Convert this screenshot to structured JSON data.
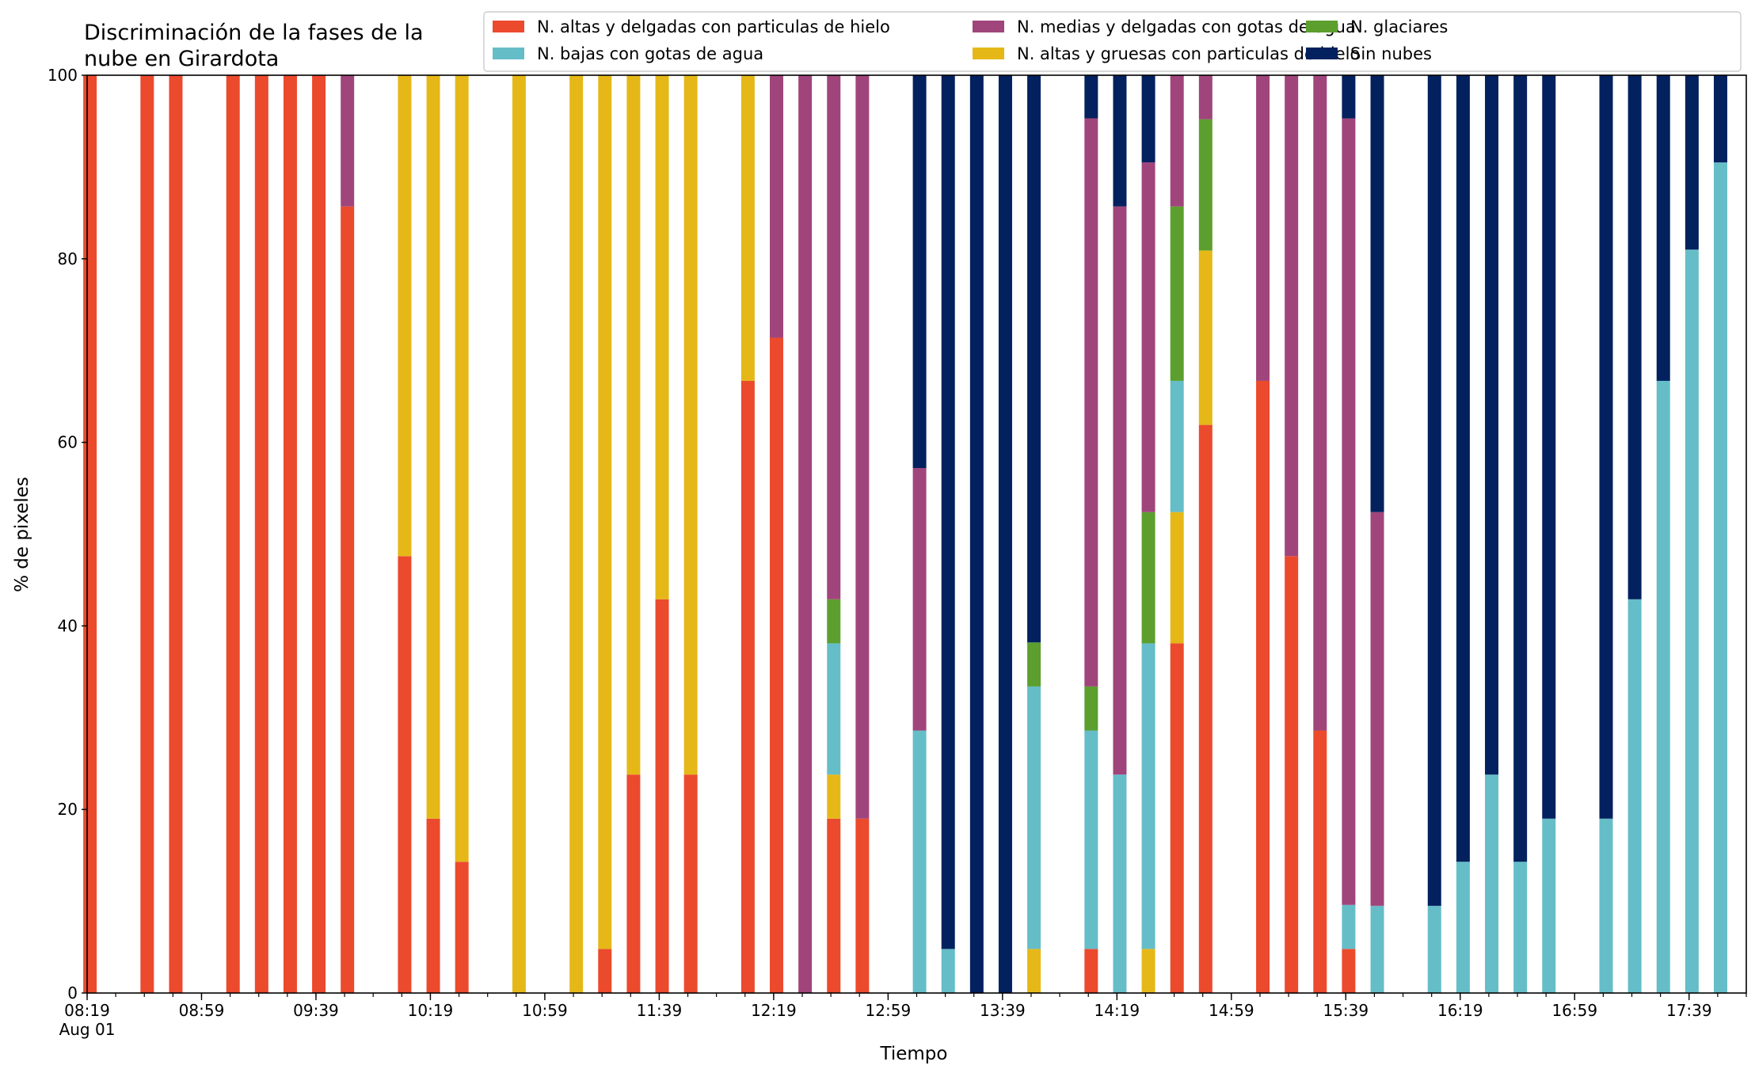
{
  "chart_data": {
    "type": "bar",
    "stacked": true,
    "title": "Discriminación de la fases de la nube en Girardota",
    "title_lines": [
      "Discriminación de la fases de la",
      "nube en Girardota"
    ],
    "xlabel": "Tiempo",
    "ylabel": "% de pixeles",
    "ylim": [
      0,
      100
    ],
    "yticks": [
      0,
      20,
      40,
      60,
      80,
      100
    ],
    "xlim": [
      "08:19",
      "17:59"
    ],
    "interval_minutes": 10,
    "xticks": [
      "08:19",
      "08:59",
      "09:39",
      "10:19",
      "10:59",
      "11:39",
      "12:19",
      "12:59",
      "13:39",
      "14:19",
      "14:59",
      "15:39",
      "16:19",
      "16:59",
      "17:39"
    ],
    "xtick_date_label": "Aug 01",
    "grid": false,
    "legend_position": "top-right",
    "legend_columns": 3,
    "series": [
      {
        "name": "N. altas y delgadas con particulas de hielo",
        "color": "#eb4a2d"
      },
      {
        "name": "N. altas y gruesas con particulas de hielo",
        "color": "#e5b818"
      },
      {
        "name": "N. bajas con gotas de agua",
        "color": "#65bdc8"
      },
      {
        "name": "N. glaciares",
        "color": "#5c9f2e"
      },
      {
        "name": "N. medias y delgadas con gotas de agua",
        "color": "#a0457b"
      },
      {
        "name": "Sin nubes",
        "color": "#03215e"
      }
    ],
    "legend_order": [
      0,
      2,
      4,
      1,
      3,
      5
    ],
    "bars": [
      {
        "time": "08:20",
        "values": [
          100,
          0,
          0,
          0,
          0,
          0
        ]
      },
      {
        "time": "08:40",
        "values": [
          100,
          0,
          0,
          0,
          0,
          0
        ]
      },
      {
        "time": "08:50",
        "values": [
          100,
          0,
          0,
          0,
          0,
          0
        ]
      },
      {
        "time": "09:10",
        "values": [
          100,
          0,
          0,
          0,
          0,
          0
        ]
      },
      {
        "time": "09:20",
        "values": [
          100,
          0,
          0,
          0,
          0,
          0
        ]
      },
      {
        "time": "09:30",
        "values": [
          100,
          0,
          0,
          0,
          0,
          0
        ]
      },
      {
        "time": "09:40",
        "values": [
          100,
          0,
          0,
          0,
          0,
          0
        ]
      },
      {
        "time": "09:50",
        "values": [
          85.7,
          0,
          0,
          0,
          14.3,
          0
        ]
      },
      {
        "time": "10:10",
        "values": [
          47.6,
          52.4,
          0,
          0,
          0,
          0
        ]
      },
      {
        "time": "10:20",
        "values": [
          19.0,
          81.0,
          0,
          0,
          0,
          0
        ]
      },
      {
        "time": "10:30",
        "values": [
          14.3,
          85.7,
          0,
          0,
          0,
          0
        ]
      },
      {
        "time": "10:50",
        "values": [
          0,
          100,
          0,
          0,
          0,
          0
        ]
      },
      {
        "time": "11:10",
        "values": [
          0,
          100,
          0,
          0,
          0,
          0
        ]
      },
      {
        "time": "11:20",
        "values": [
          4.8,
          95.2,
          0,
          0,
          0,
          0
        ]
      },
      {
        "time": "11:30",
        "values": [
          23.8,
          76.2,
          0,
          0,
          0,
          0
        ]
      },
      {
        "time": "11:40",
        "values": [
          42.9,
          57.1,
          0,
          0,
          0,
          0
        ]
      },
      {
        "time": "11:50",
        "values": [
          23.8,
          76.2,
          0,
          0,
          0,
          0
        ]
      },
      {
        "time": "12:10",
        "values": [
          66.7,
          33.3,
          0,
          0,
          0,
          0
        ]
      },
      {
        "time": "12:20",
        "values": [
          71.4,
          0,
          0,
          0,
          28.6,
          0
        ]
      },
      {
        "time": "12:30",
        "values": [
          0,
          0,
          0,
          0,
          100,
          0
        ]
      },
      {
        "time": "12:40",
        "values": [
          19.0,
          4.8,
          14.3,
          4.8,
          57.1,
          0
        ]
      },
      {
        "time": "12:50",
        "values": [
          19.0,
          0,
          0,
          0,
          81.0,
          0
        ]
      },
      {
        "time": "13:10",
        "values": [
          0,
          0,
          28.6,
          0,
          28.6,
          42.8
        ]
      },
      {
        "time": "13:20",
        "values": [
          0,
          0,
          4.8,
          0,
          0,
          95.2
        ]
      },
      {
        "time": "13:30",
        "values": [
          0,
          0,
          0,
          0,
          0,
          100
        ]
      },
      {
        "time": "13:40",
        "values": [
          0,
          0,
          0,
          0,
          0,
          100
        ]
      },
      {
        "time": "13:50",
        "values": [
          0,
          4.8,
          28.6,
          4.8,
          0,
          61.8
        ]
      },
      {
        "time": "14:10",
        "values": [
          4.8,
          0,
          23.8,
          4.8,
          61.9,
          4.7
        ]
      },
      {
        "time": "14:20",
        "values": [
          0,
          0,
          23.8,
          0,
          61.9,
          14.3
        ]
      },
      {
        "time": "14:30",
        "values": [
          0,
          4.8,
          33.3,
          14.3,
          38.1,
          9.5
        ]
      },
      {
        "time": "14:40",
        "values": [
          38.1,
          14.3,
          14.3,
          19.0,
          14.3,
          0
        ]
      },
      {
        "time": "14:50",
        "values": [
          61.9,
          19.0,
          0,
          14.3,
          4.8,
          0
        ]
      },
      {
        "time": "15:10",
        "values": [
          66.7,
          0,
          0,
          0,
          33.3,
          0
        ]
      },
      {
        "time": "15:20",
        "values": [
          47.6,
          0,
          0,
          0,
          52.4,
          0
        ]
      },
      {
        "time": "15:30",
        "values": [
          28.6,
          0,
          0,
          0,
          71.4,
          0
        ]
      },
      {
        "time": "15:40",
        "values": [
          4.8,
          0,
          4.8,
          0,
          85.7,
          4.7
        ]
      },
      {
        "time": "15:50",
        "values": [
          0,
          0,
          9.5,
          0,
          42.9,
          47.6
        ]
      },
      {
        "time": "16:10",
        "values": [
          0,
          0,
          9.5,
          0,
          0,
          90.5
        ]
      },
      {
        "time": "16:20",
        "values": [
          0,
          0,
          14.3,
          0,
          0,
          85.7
        ]
      },
      {
        "time": "16:30",
        "values": [
          0,
          0,
          23.8,
          0,
          0,
          76.2
        ]
      },
      {
        "time": "16:40",
        "values": [
          0,
          0,
          14.3,
          0,
          0,
          85.7
        ]
      },
      {
        "time": "16:50",
        "values": [
          0,
          0,
          19.0,
          0,
          0,
          81.0
        ]
      },
      {
        "time": "17:10",
        "values": [
          0,
          0,
          19.0,
          0,
          0,
          81.0
        ]
      },
      {
        "time": "17:20",
        "values": [
          0,
          0,
          42.9,
          0,
          0,
          57.1
        ]
      },
      {
        "time": "17:30",
        "values": [
          0,
          0,
          66.7,
          0,
          0,
          33.3
        ]
      },
      {
        "time": "17:40",
        "values": [
          0,
          0,
          81.0,
          0,
          0,
          19.0
        ]
      },
      {
        "time": "17:50",
        "values": [
          0,
          0,
          90.5,
          0,
          0,
          9.5
        ]
      }
    ]
  }
}
